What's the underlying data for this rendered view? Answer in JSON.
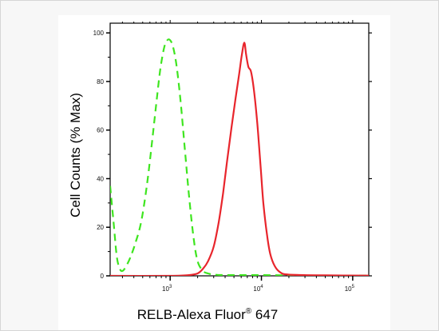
{
  "chart_data": {
    "type": "line",
    "title": "",
    "xlabel": {
      "main": "RELB-Alexa Fluor",
      "sup": "®",
      "tail": " 647"
    },
    "ylabel": "Cell Counts (% Max)",
    "x_scale": "log",
    "xlim": [
      220,
      150000
    ],
    "ylim": [
      0,
      104
    ],
    "y_ticks": [
      0,
      20,
      40,
      60,
      80,
      100
    ],
    "x_ticks": [
      {
        "value": 1000,
        "base": "10",
        "exp": "3"
      },
      {
        "value": 10000,
        "base": "10",
        "exp": "4"
      },
      {
        "value": 100000,
        "base": "10",
        "exp": "5"
      }
    ],
    "grid": false,
    "series": [
      {
        "color": "#3ee51f",
        "dash": "dashed",
        "x": [
          220,
          240,
          260,
          280,
          300,
          330,
          370,
          420,
          480,
          550,
          620,
          700,
          780,
          860,
          930,
          1000,
          1080,
          1180,
          1300,
          1450,
          1600,
          1800,
          2000,
          2300,
          2600,
          3000,
          4000,
          6000,
          10000,
          20000,
          50000,
          150000
        ],
        "y": [
          37,
          22,
          8,
          3,
          2,
          4,
          8,
          14,
          22,
          36,
          52,
          70,
          85,
          94,
          97,
          97,
          94,
          86,
          72,
          52,
          34,
          16,
          6,
          2,
          1,
          0.5,
          0.3,
          0.3,
          0.3,
          0.2,
          0.1,
          0.1
        ]
      },
      {
        "color": "#e8252c",
        "dash": "solid",
        "x": [
          220,
          1000,
          1600,
          2000,
          2300,
          2600,
          3000,
          3400,
          3800,
          4200,
          4700,
          5200,
          5700,
          6100,
          6500,
          6800,
          7200,
          7700,
          8300,
          9000,
          9800,
          10500,
          11500,
          12500,
          14000,
          16000,
          20000,
          50000,
          150000
        ],
        "y": [
          0,
          0,
          0.3,
          1,
          3,
          6,
          12,
          22,
          34,
          47,
          61,
          73,
          83,
          91,
          96,
          91,
          86,
          84,
          76,
          63,
          45,
          30,
          17,
          9,
          4,
          1.5,
          0.5,
          0.2,
          0.1
        ]
      }
    ]
  }
}
